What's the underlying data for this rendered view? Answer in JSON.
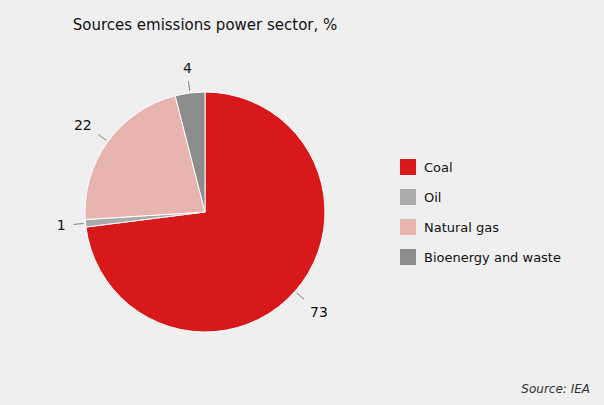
{
  "chart_data": {
    "type": "pie",
    "title": "Sources emissions power sector, %",
    "categories": [
      "Coal",
      "Oil",
      "Natural gas",
      "Bioenergy and waste"
    ],
    "values": [
      73,
      1,
      22,
      4
    ],
    "colors": [
      "#d7191c",
      "#aaaaaa",
      "#e8b4b0",
      "#8c8c8c"
    ],
    "data_labels": true,
    "legend": "right",
    "annotations": [
      "Source: IEA"
    ]
  }
}
